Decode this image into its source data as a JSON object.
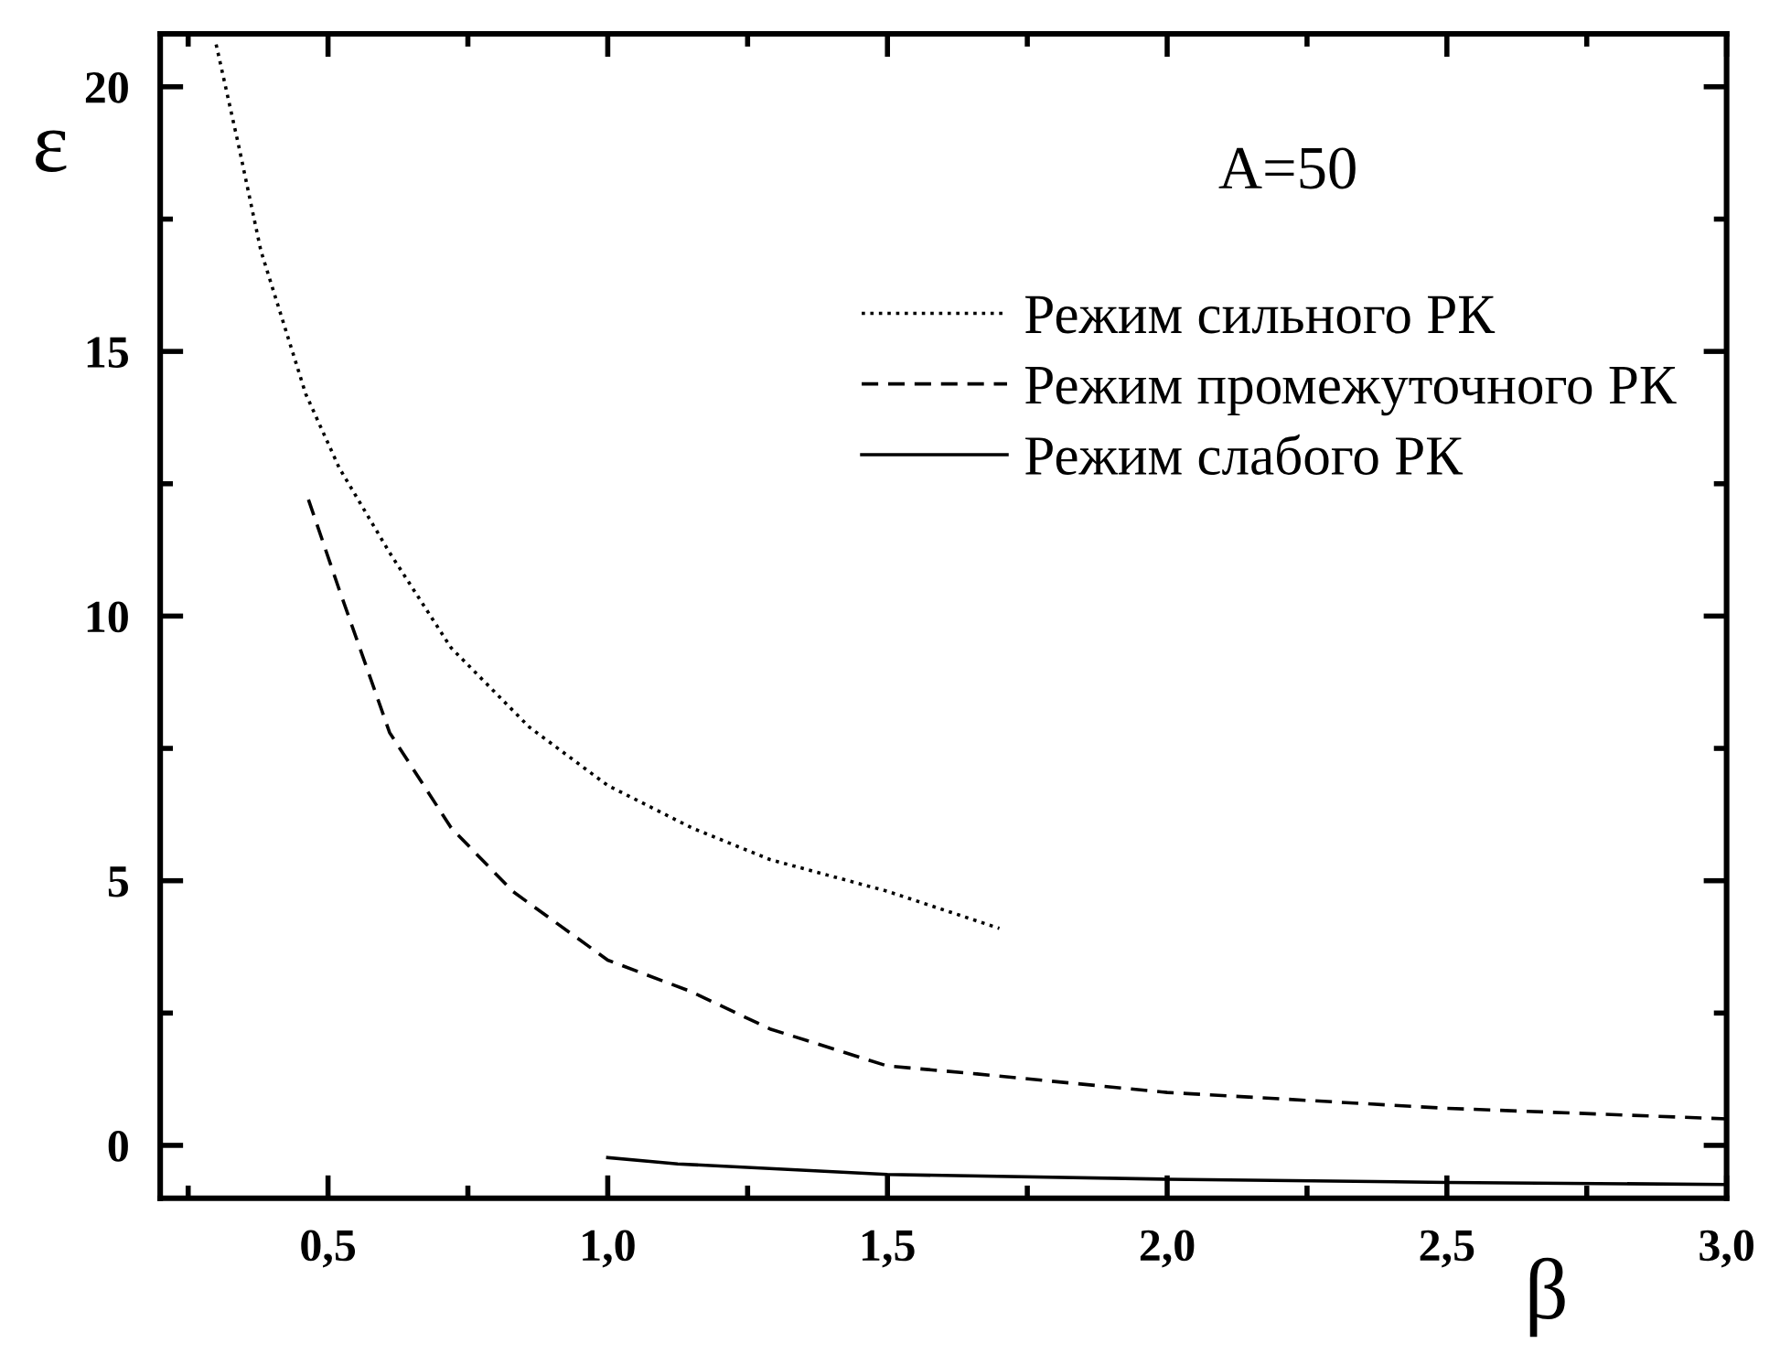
{
  "chart_data": {
    "type": "line",
    "xlabel": "β",
    "ylabel": "ε",
    "annotations": [
      "A=50"
    ],
    "xlim": [
      0.2,
      3.0
    ],
    "ylim": [
      -1,
      21
    ],
    "xticks": [
      {
        "value": 0.5,
        "label": "0,5"
      },
      {
        "value": 1.0,
        "label": "1,0"
      },
      {
        "value": 1.5,
        "label": "1,5"
      },
      {
        "value": 2.0,
        "label": "2,0"
      },
      {
        "value": 2.5,
        "label": "2,5"
      },
      {
        "value": 3.0,
        "label": "3,0"
      }
    ],
    "yticks": [
      0,
      5,
      10,
      15,
      20
    ],
    "grid": false,
    "legend": "top right",
    "series": [
      {
        "name": "Режим сильного РК",
        "color": "#000000",
        "line_style": "dotted",
        "x": [
          0.3,
          0.34,
          0.38,
          0.46,
          0.52,
          0.61,
          0.72,
          0.86,
          1.0,
          1.15,
          1.29,
          1.5,
          1.7
        ],
        "values": [
          20.8,
          18.9,
          16.9,
          14.2,
          12.8,
          11.2,
          9.4,
          7.9,
          6.8,
          6.0,
          5.4,
          4.8,
          4.1
        ]
      },
      {
        "name": "Режим промежуточного РК",
        "color": "#000000",
        "line_style": "dashed",
        "x": [
          0.465,
          0.52,
          0.61,
          0.72,
          0.83,
          1.0,
          1.15,
          1.29,
          1.5,
          1.66,
          2.0,
          2.5,
          3.0
        ],
        "values": [
          12.2,
          10.5,
          7.8,
          6.0,
          4.8,
          3.5,
          2.9,
          2.2,
          1.5,
          1.35,
          1.0,
          0.7,
          0.5
        ]
      },
      {
        "name": "Режим слабого РК",
        "color": "#000000",
        "line_style": "solid",
        "x": [
          1.0,
          1.125,
          1.5,
          2.0,
          2.5,
          3.0
        ],
        "values": [
          -0.23,
          -0.35,
          -0.55,
          -0.64,
          -0.7,
          -0.74
        ]
      }
    ]
  }
}
